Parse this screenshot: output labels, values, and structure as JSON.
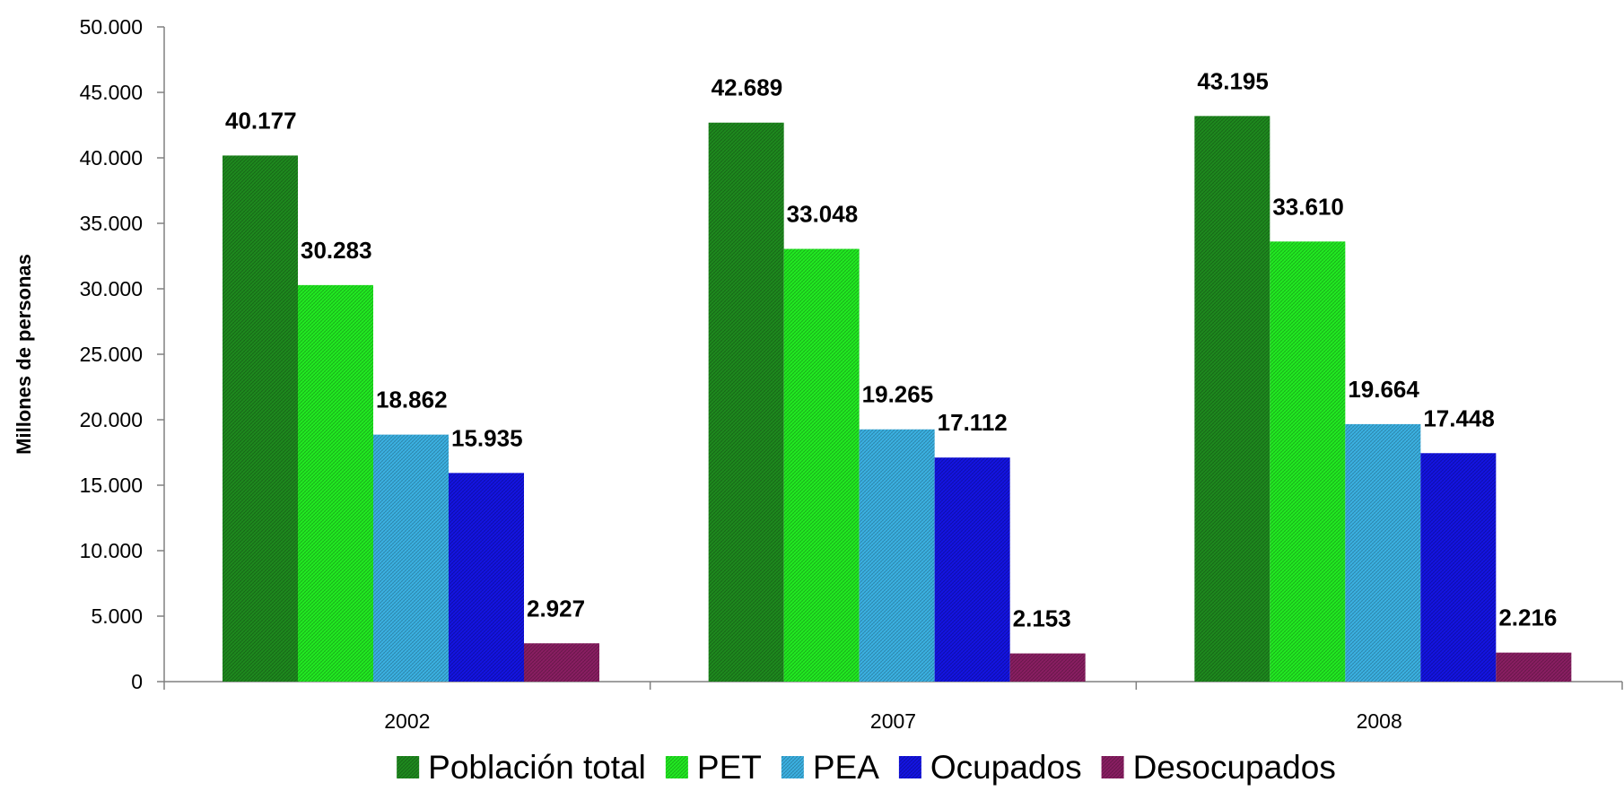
{
  "chart_data": {
    "type": "bar",
    "title": "",
    "xlabel": "",
    "ylabel": "Millones de personas",
    "ylim": [
      0,
      50000
    ],
    "ytick_step": 5000,
    "yticks": [
      "0",
      "5.000",
      "10.000",
      "15.000",
      "20.000",
      "25.000",
      "30.000",
      "35.000",
      "40.000",
      "45.000",
      "50.000"
    ],
    "categories": [
      "2002",
      "2007",
      "2008"
    ],
    "series": [
      {
        "name": "Población total",
        "color": "#1e8c1e",
        "values": [
          40177,
          42689,
          43195
        ],
        "labels": [
          "40.177",
          "42.689",
          "43.195"
        ]
      },
      {
        "name": "PET",
        "color": "#22ee22",
        "values": [
          30283,
          33048,
          33610
        ],
        "labels": [
          "30.283",
          "33.048",
          "33.610"
        ]
      },
      {
        "name": "PEA",
        "color": "#3cb4e6",
        "values": [
          18862,
          19265,
          19664
        ],
        "labels": [
          "18.862",
          "19.265",
          "19.664"
        ]
      },
      {
        "name": "Ocupados",
        "color": "#1414e6",
        "values": [
          15935,
          17112,
          17448
        ],
        "labels": [
          "15.935",
          "17.112",
          "17.448"
        ]
      },
      {
        "name": "Desocupados",
        "color": "#8c1e64",
        "values": [
          2927,
          2153,
          2216
        ],
        "labels": [
          "2.927",
          "2.153",
          "2.216"
        ]
      }
    ],
    "grid": false,
    "legend": "bottom"
  }
}
